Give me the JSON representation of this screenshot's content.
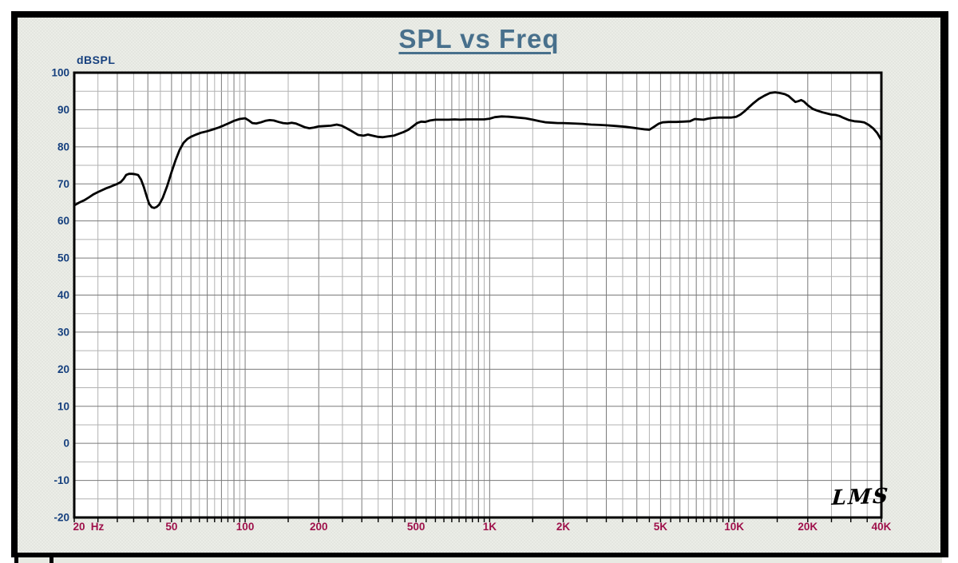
{
  "title": "SPL vs Freq",
  "y_axis_label": "dBSPL",
  "logo_text": "LMS",
  "colors": {
    "title": "#48708c",
    "y_tick_label": "#16407e",
    "x_tick_label": "#9e104a",
    "curve": "#000000",
    "grid_major": "#7a7a7a",
    "grid_minor": "#b2b2b2",
    "plot_border": "#000000",
    "plot_bg": "#ffffff",
    "panel_bg": "#e8eae3",
    "frame": "#000000",
    "logo": "#000000"
  },
  "chart_data": {
    "type": "line",
    "title": "SPL vs Freq",
    "ylabel": "dBSPL",
    "x_unit": "Hz",
    "x_scale": "log",
    "xlim": [
      20,
      40000
    ],
    "ylim": [
      -20,
      100
    ],
    "y_major_step": 10,
    "y_minor_step": 5,
    "grid": true,
    "legend": "none",
    "x_ticks": [
      {
        "value": 20,
        "label": "20"
      },
      {
        "value": 50,
        "label": "50"
      },
      {
        "value": 100,
        "label": "100"
      },
      {
        "value": 200,
        "label": "200"
      },
      {
        "value": 500,
        "label": "500"
      },
      {
        "value": 1000,
        "label": "1K"
      },
      {
        "value": 2000,
        "label": "2K"
      },
      {
        "value": 5000,
        "label": "5K"
      },
      {
        "value": 10000,
        "label": "10K"
      },
      {
        "value": 20000,
        "label": "20K"
      },
      {
        "value": 40000,
        "label": "40K"
      }
    ],
    "x_grid_major": [
      20,
      30,
      40,
      50,
      60,
      70,
      80,
      90,
      100,
      200,
      300,
      400,
      500,
      600,
      700,
      800,
      900,
      1000,
      2000,
      3000,
      4000,
      5000,
      6000,
      7000,
      8000,
      9000,
      10000,
      20000,
      30000,
      40000
    ],
    "x_grid_minor": [
      25,
      35,
      45,
      55,
      65,
      75,
      85,
      95,
      150,
      250,
      350,
      450,
      550,
      650,
      750,
      850,
      950,
      1500,
      2500,
      3500,
      4500,
      5500,
      6500,
      7500,
      8500,
      9500,
      15000,
      25000,
      35000
    ],
    "series": [
      {
        "name": "SPL",
        "color": "#000000",
        "points": [
          [
            20,
            64.2
          ],
          [
            21,
            65.0
          ],
          [
            22,
            65.6
          ],
          [
            23,
            66.4
          ],
          [
            24,
            67.2
          ],
          [
            25,
            67.8
          ],
          [
            26,
            68.3
          ],
          [
            27,
            68.8
          ],
          [
            28,
            69.2
          ],
          [
            29,
            69.6
          ],
          [
            30,
            70.0
          ],
          [
            31,
            70.5
          ],
          [
            31.8,
            71.3
          ],
          [
            32.6,
            72.4
          ],
          [
            33.5,
            72.7
          ],
          [
            34.5,
            72.7
          ],
          [
            35.5,
            72.6
          ],
          [
            36.5,
            72.4
          ],
          [
            37.5,
            71.2
          ],
          [
            38.5,
            69.2
          ],
          [
            39.5,
            66.8
          ],
          [
            40.5,
            64.6
          ],
          [
            41.5,
            63.7
          ],
          [
            42.5,
            63.5
          ],
          [
            43.5,
            63.8
          ],
          [
            44.5,
            64.4
          ],
          [
            46,
            66.2
          ],
          [
            48,
            69.4
          ],
          [
            50,
            73.2
          ],
          [
            52,
            76.5
          ],
          [
            54,
            79.2
          ],
          [
            56,
            81.1
          ],
          [
            58,
            82.1
          ],
          [
            60,
            82.7
          ],
          [
            63,
            83.3
          ],
          [
            66,
            83.8
          ],
          [
            70,
            84.2
          ],
          [
            74,
            84.7
          ],
          [
            78,
            85.2
          ],
          [
            82,
            85.8
          ],
          [
            86,
            86.4
          ],
          [
            90,
            87.0
          ],
          [
            95,
            87.5
          ],
          [
            100,
            87.7
          ],
          [
            103,
            87.2
          ],
          [
            107,
            86.4
          ],
          [
            111,
            86.3
          ],
          [
            116,
            86.6
          ],
          [
            121,
            87.0
          ],
          [
            126,
            87.2
          ],
          [
            131,
            87.1
          ],
          [
            137,
            86.7
          ],
          [
            143,
            86.4
          ],
          [
            149,
            86.3
          ],
          [
            155,
            86.5
          ],
          [
            161,
            86.3
          ],
          [
            168,
            85.8
          ],
          [
            175,
            85.3
          ],
          [
            183,
            85.0
          ],
          [
            191,
            85.2
          ],
          [
            200,
            85.5
          ],
          [
            212,
            85.6
          ],
          [
            224,
            85.7
          ],
          [
            237,
            86.0
          ],
          [
            248,
            85.7
          ],
          [
            260,
            85.0
          ],
          [
            275,
            84.1
          ],
          [
            290,
            83.2
          ],
          [
            305,
            83.0
          ],
          [
            318,
            83.3
          ],
          [
            332,
            83.0
          ],
          [
            348,
            82.7
          ],
          [
            366,
            82.6
          ],
          [
            385,
            82.8
          ],
          [
            405,
            83.0
          ],
          [
            425,
            83.5
          ],
          [
            445,
            84.0
          ],
          [
            465,
            84.6
          ],
          [
            485,
            85.5
          ],
          [
            505,
            86.4
          ],
          [
            525,
            86.8
          ],
          [
            545,
            86.7
          ],
          [
            570,
            87.1
          ],
          [
            600,
            87.3
          ],
          [
            640,
            87.3
          ],
          [
            680,
            87.3
          ],
          [
            720,
            87.4
          ],
          [
            760,
            87.3
          ],
          [
            800,
            87.4
          ],
          [
            850,
            87.4
          ],
          [
            900,
            87.4
          ],
          [
            950,
            87.4
          ],
          [
            1000,
            87.6
          ],
          [
            1050,
            88.0
          ],
          [
            1120,
            88.2
          ],
          [
            1200,
            88.1
          ],
          [
            1300,
            87.9
          ],
          [
            1400,
            87.7
          ],
          [
            1500,
            87.3
          ],
          [
            1600,
            86.9
          ],
          [
            1700,
            86.6
          ],
          [
            1800,
            86.5
          ],
          [
            1900,
            86.4
          ],
          [
            2000,
            86.4
          ],
          [
            2200,
            86.3
          ],
          [
            2400,
            86.2
          ],
          [
            2600,
            86.0
          ],
          [
            2800,
            85.9
          ],
          [
            3000,
            85.8
          ],
          [
            3300,
            85.6
          ],
          [
            3600,
            85.4
          ],
          [
            3900,
            85.1
          ],
          [
            4100,
            84.9
          ],
          [
            4300,
            84.7
          ],
          [
            4500,
            84.6
          ],
          [
            4700,
            85.4
          ],
          [
            4900,
            86.2
          ],
          [
            5100,
            86.6
          ],
          [
            5400,
            86.7
          ],
          [
            5800,
            86.7
          ],
          [
            6200,
            86.8
          ],
          [
            6600,
            86.9
          ],
          [
            6900,
            87.5
          ],
          [
            7200,
            87.4
          ],
          [
            7500,
            87.3
          ],
          [
            7800,
            87.6
          ],
          [
            8200,
            87.8
          ],
          [
            8700,
            87.9
          ],
          [
            9200,
            87.9
          ],
          [
            9700,
            87.9
          ],
          [
            10200,
            88.1
          ],
          [
            10600,
            88.7
          ],
          [
            11000,
            89.5
          ],
          [
            11500,
            90.7
          ],
          [
            12000,
            91.8
          ],
          [
            12600,
            92.9
          ],
          [
            13300,
            93.8
          ],
          [
            14000,
            94.5
          ],
          [
            14700,
            94.7
          ],
          [
            15400,
            94.5
          ],
          [
            16100,
            94.2
          ],
          [
            16700,
            93.7
          ],
          [
            17300,
            92.8
          ],
          [
            17800,
            92.1
          ],
          [
            18300,
            92.3
          ],
          [
            18800,
            92.6
          ],
          [
            19300,
            92.2
          ],
          [
            20000,
            91.2
          ],
          [
            21000,
            90.2
          ],
          [
            22000,
            89.7
          ],
          [
            23000,
            89.3
          ],
          [
            24000,
            89.0
          ],
          [
            25000,
            88.7
          ],
          [
            26000,
            88.6
          ],
          [
            27000,
            88.3
          ],
          [
            28000,
            87.8
          ],
          [
            29500,
            87.2
          ],
          [
            31000,
            86.9
          ],
          [
            32500,
            86.8
          ],
          [
            34000,
            86.6
          ],
          [
            35500,
            85.9
          ],
          [
            37000,
            85.0
          ],
          [
            38500,
            83.7
          ],
          [
            40000,
            81.8
          ]
        ]
      }
    ]
  }
}
